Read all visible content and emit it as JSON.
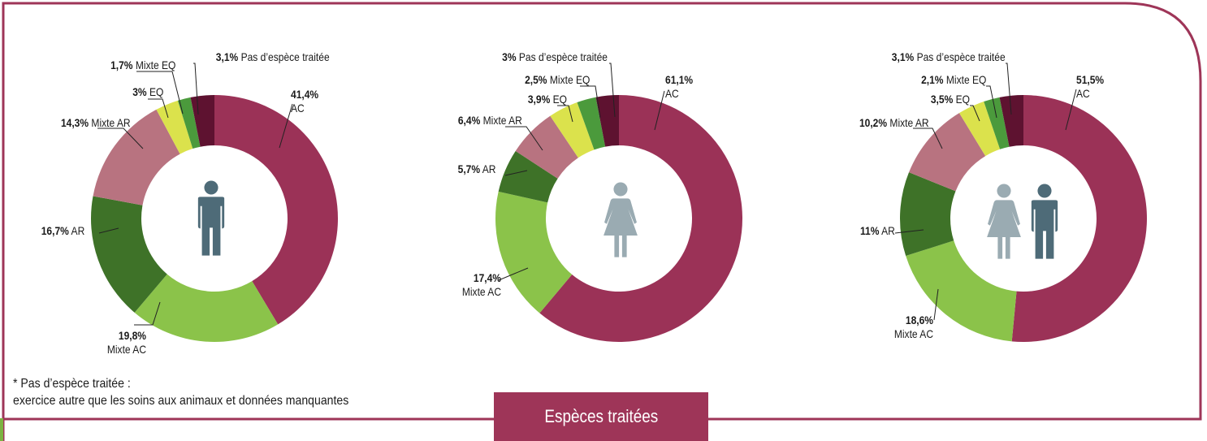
{
  "footnote": {
    "line1": "* Pas d’espèce traitée :",
    "line2": "exercice autre que les soins aux animaux et données manquantes"
  },
  "tab_label": "Espèces traitées",
  "colors": {
    "frame": "#9e3558",
    "tab": "#9e3558",
    "figure_male": "#4e6b78",
    "figure_female": "#9aabb2"
  },
  "categories": [
    "AC",
    "Mixte AC",
    "AR",
    "Mixte AR",
    "EQ",
    "Mixte EQ",
    "Pas d’espèce traitée"
  ],
  "category_colors": {
    "AC": "#9b3257",
    "Mixte AC": "#8bc34a",
    "AR": "#3e7228",
    "Mixte AR": "#b87380",
    "EQ": "#dbe24c",
    "Mixte EQ": "#4b9a3c",
    "Pas d’espèce traitée": "#5e1230"
  },
  "chart_data": [
    {
      "type": "pie",
      "variant": "donut",
      "icon": "male",
      "slices": [
        {
          "category": "AC",
          "value": 41.4,
          "pct_text": "41,4%",
          "label_text": "AC"
        },
        {
          "category": "Mixte AC",
          "value": 19.8,
          "pct_text": "19,8%",
          "label_text": "Mixte AC"
        },
        {
          "category": "AR",
          "value": 16.7,
          "pct_text": "16,7%",
          "label_text": "AR"
        },
        {
          "category": "Mixte AR",
          "value": 14.3,
          "pct_text": "14,3%",
          "label_text": "Mixte AR"
        },
        {
          "category": "EQ",
          "value": 3.0,
          "pct_text": "3%",
          "label_text": "EQ"
        },
        {
          "category": "Mixte EQ",
          "value": 1.7,
          "pct_text": "1,7%",
          "label_text": "Mixte EQ"
        },
        {
          "category": "Pas d’espèce traitée",
          "value": 3.1,
          "pct_text": "3,1%",
          "label_text": "Pas d’espèce traitée"
        }
      ]
    },
    {
      "type": "pie",
      "variant": "donut",
      "icon": "female",
      "slices": [
        {
          "category": "AC",
          "value": 61.1,
          "pct_text": "61,1%",
          "label_text": "AC"
        },
        {
          "category": "Mixte AC",
          "value": 17.4,
          "pct_text": "17,4%",
          "label_text": "Mixte AC"
        },
        {
          "category": "AR",
          "value": 5.7,
          "pct_text": "5,7%",
          "label_text": "AR"
        },
        {
          "category": "Mixte AR",
          "value": 6.4,
          "pct_text": "6,4%",
          "label_text": "Mixte AR"
        },
        {
          "category": "EQ",
          "value": 3.9,
          "pct_text": "3,9%",
          "label_text": "EQ"
        },
        {
          "category": "Mixte EQ",
          "value": 2.5,
          "pct_text": "2,5%",
          "label_text": "Mixte EQ"
        },
        {
          "category": "Pas d’espèce traitée",
          "value": 3.0,
          "pct_text": "3%",
          "label_text": "Pas d’espèce traitée"
        }
      ]
    },
    {
      "type": "pie",
      "variant": "donut",
      "icon": "both",
      "slices": [
        {
          "category": "AC",
          "value": 51.5,
          "pct_text": "51,5%",
          "label_text": "AC"
        },
        {
          "category": "Mixte AC",
          "value": 18.6,
          "pct_text": "18,6%",
          "label_text": "Mixte AC"
        },
        {
          "category": "AR",
          "value": 11.0,
          "pct_text": "11%",
          "label_text": "AR"
        },
        {
          "category": "Mixte AR",
          "value": 10.2,
          "pct_text": "10,2%",
          "label_text": "Mixte AR"
        },
        {
          "category": "EQ",
          "value": 3.5,
          "pct_text": "3,5%",
          "label_text": "EQ"
        },
        {
          "category": "Mixte EQ",
          "value": 2.1,
          "pct_text": "2,1%",
          "label_text": "Mixte EQ"
        },
        {
          "category": "Pas d’espèce traitée",
          "value": 3.1,
          "pct_text": "3,1%",
          "label_text": "Pas d’espèce traitée"
        }
      ]
    }
  ]
}
